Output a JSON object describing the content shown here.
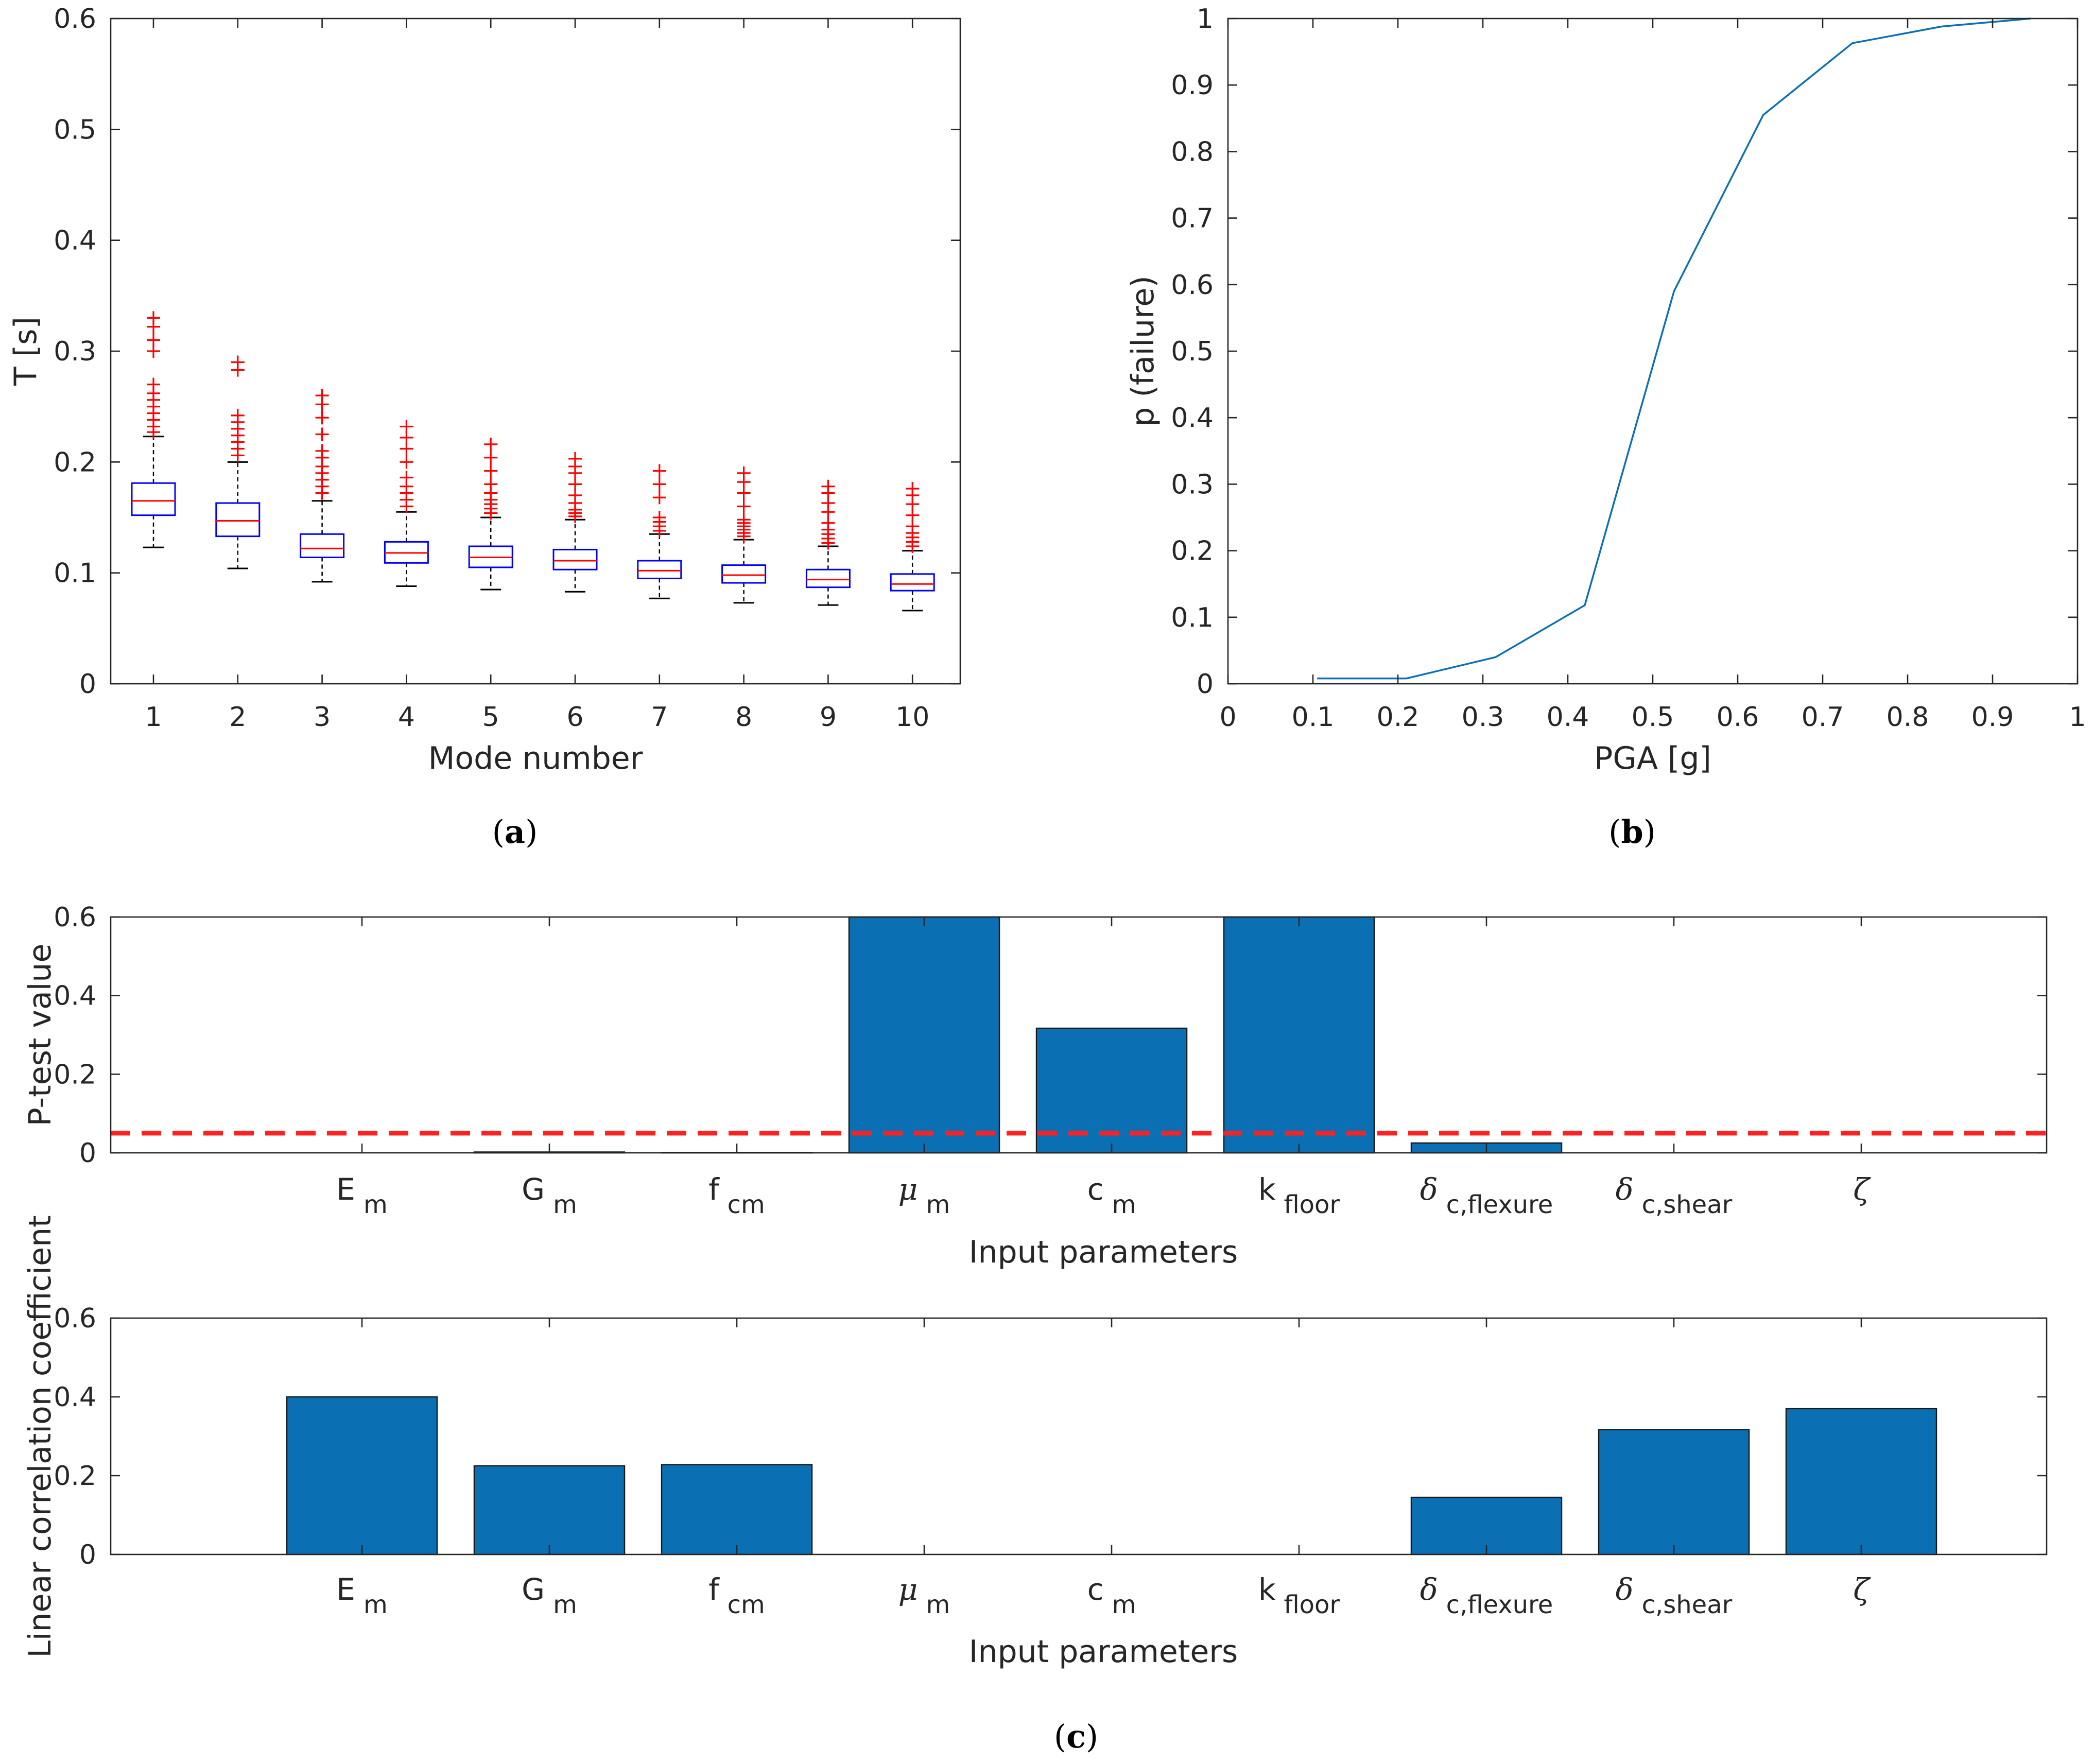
{
  "chart_data": [
    {
      "id": "a",
      "type": "box",
      "caption": "a",
      "xlabel": "Mode number",
      "ylabel": "T [s]",
      "ylim": [
        0,
        0.6
      ],
      "yticks": [
        "0",
        "0.1",
        "0.2",
        "0.3",
        "0.4",
        "0.5",
        "0.6"
      ],
      "categories": [
        "1",
        "2",
        "3",
        "4",
        "5",
        "6",
        "7",
        "8",
        "9",
        "10"
      ],
      "boxes": [
        {
          "whisker_low": 0.123,
          "q1": 0.152,
          "median": 0.165,
          "q3": 0.181,
          "whisker_high": 0.223,
          "outliers": [
            0.227,
            0.232,
            0.238,
            0.244,
            0.25,
            0.256,
            0.262,
            0.27,
            0.3,
            0.31,
            0.322,
            0.33
          ]
        },
        {
          "whisker_low": 0.104,
          "q1": 0.133,
          "median": 0.147,
          "q3": 0.163,
          "whisker_high": 0.2,
          "outliers": [
            0.206,
            0.212,
            0.218,
            0.224,
            0.23,
            0.236,
            0.242,
            0.283,
            0.29
          ]
        },
        {
          "whisker_low": 0.092,
          "q1": 0.114,
          "median": 0.122,
          "q3": 0.135,
          "whisker_high": 0.165,
          "outliers": [
            0.172,
            0.178,
            0.184,
            0.19,
            0.196,
            0.204,
            0.21,
            0.225,
            0.24,
            0.252,
            0.26
          ]
        },
        {
          "whisker_low": 0.088,
          "q1": 0.109,
          "median": 0.118,
          "q3": 0.128,
          "whisker_high": 0.155,
          "outliers": [
            0.16,
            0.166,
            0.172,
            0.178,
            0.186,
            0.2,
            0.212,
            0.222,
            0.232
          ]
        },
        {
          "whisker_low": 0.085,
          "q1": 0.105,
          "median": 0.114,
          "q3": 0.124,
          "whisker_high": 0.15,
          "outliers": [
            0.154,
            0.158,
            0.162,
            0.166,
            0.172,
            0.18,
            0.192,
            0.204,
            0.216
          ]
        },
        {
          "whisker_low": 0.083,
          "q1": 0.103,
          "median": 0.111,
          "q3": 0.121,
          "whisker_high": 0.148,
          "outliers": [
            0.151,
            0.154,
            0.157,
            0.163,
            0.17,
            0.18,
            0.19,
            0.196,
            0.203
          ]
        },
        {
          "whisker_low": 0.077,
          "q1": 0.095,
          "median": 0.102,
          "q3": 0.111,
          "whisker_high": 0.135,
          "outliers": [
            0.138,
            0.142,
            0.146,
            0.15,
            0.168,
            0.18,
            0.192
          ]
        },
        {
          "whisker_low": 0.073,
          "q1": 0.091,
          "median": 0.098,
          "q3": 0.107,
          "whisker_high": 0.13,
          "outliers": [
            0.133,
            0.136,
            0.139,
            0.142,
            0.145,
            0.148,
            0.16,
            0.172,
            0.182,
            0.19
          ]
        },
        {
          "whisker_low": 0.071,
          "q1": 0.087,
          "median": 0.094,
          "q3": 0.103,
          "whisker_high": 0.124,
          "outliers": [
            0.127,
            0.131,
            0.135,
            0.139,
            0.145,
            0.155,
            0.163,
            0.172,
            0.178
          ]
        },
        {
          "whisker_low": 0.066,
          "q1": 0.084,
          "median": 0.09,
          "q3": 0.099,
          "whisker_high": 0.12,
          "outliers": [
            0.124,
            0.128,
            0.132,
            0.136,
            0.142,
            0.152,
            0.162,
            0.17,
            0.176
          ]
        }
      ]
    },
    {
      "id": "b",
      "type": "line",
      "caption": "b",
      "xlabel": "PGA [g]",
      "ylabel": "p (failure)",
      "xlim": [
        0,
        1
      ],
      "ylim": [
        0,
        1
      ],
      "xticks": [
        "0",
        "0.1",
        "0.2",
        "0.3",
        "0.4",
        "0.5",
        "0.6",
        "0.7",
        "0.8",
        "0.9",
        "1"
      ],
      "yticks": [
        "0",
        "0.1",
        "0.2",
        "0.3",
        "0.4",
        "0.5",
        "0.6",
        "0.7",
        "0.8",
        "0.9",
        "1"
      ],
      "x": [
        0.105,
        0.21,
        0.315,
        0.42,
        0.525,
        0.63,
        0.735,
        0.84,
        0.945
      ],
      "y": [
        0.008,
        0.008,
        0.04,
        0.118,
        0.59,
        0.855,
        0.963,
        0.988,
        1.0
      ]
    },
    {
      "id": "c-top",
      "type": "bar",
      "xlabel": "Input parameters",
      "ylabel": "P-test value",
      "ylim": [
        0,
        0.6
      ],
      "yticks": [
        "0",
        "0.2",
        "0.4",
        "0.6"
      ],
      "categories": [
        "E_m",
        "G_m",
        "f_cm",
        "μ_m",
        "c_m",
        "k_floor",
        "δ_c,flexure",
        "δ_c,shear",
        "ζ"
      ],
      "values": [
        0.0,
        0.002,
        0.001,
        0.6,
        0.317,
        0.6,
        0.025,
        0.0,
        0.0
      ],
      "threshold": 0.05
    },
    {
      "id": "c-bottom",
      "type": "bar",
      "caption": "c",
      "xlabel": "Input parameters",
      "ylabel": "Linear correlation coefficient",
      "ylim": [
        0,
        0.6
      ],
      "yticks": [
        "0",
        "0.2",
        "0.4",
        "0.6"
      ],
      "categories": [
        "E_m",
        "G_m",
        "f_cm",
        "μ_m",
        "c_m",
        "k_floor",
        "δ_c,flexure",
        "δ_c,shear",
        "ζ"
      ],
      "values": [
        0.4,
        0.225,
        0.228,
        0.0,
        0.0,
        0.0,
        0.145,
        0.317,
        0.37
      ]
    }
  ],
  "param_labels": [
    {
      "main": "E",
      "sub": "m",
      "greek": false
    },
    {
      "main": "G",
      "sub": "m",
      "greek": false
    },
    {
      "main": "f",
      "sub": "cm",
      "greek": false
    },
    {
      "main": "μ",
      "sub": "m",
      "greek": true
    },
    {
      "main": "c",
      "sub": "m",
      "greek": false
    },
    {
      "main": "k",
      "sub": "floor",
      "greek": false
    },
    {
      "main": "δ",
      "sub": "c,flexure",
      "greek": true
    },
    {
      "main": "δ",
      "sub": "c,shear",
      "greek": true
    },
    {
      "main": "ζ",
      "sub": "",
      "greek": true
    }
  ],
  "colors": {
    "axis": "#262626",
    "bar": "#0b6fb4",
    "box": "#0000ff",
    "median": "#ff0000",
    "whisker": "#000000",
    "outlier": "#ff0000",
    "line": "#0b6fb4",
    "threshold": "#ff2020"
  }
}
